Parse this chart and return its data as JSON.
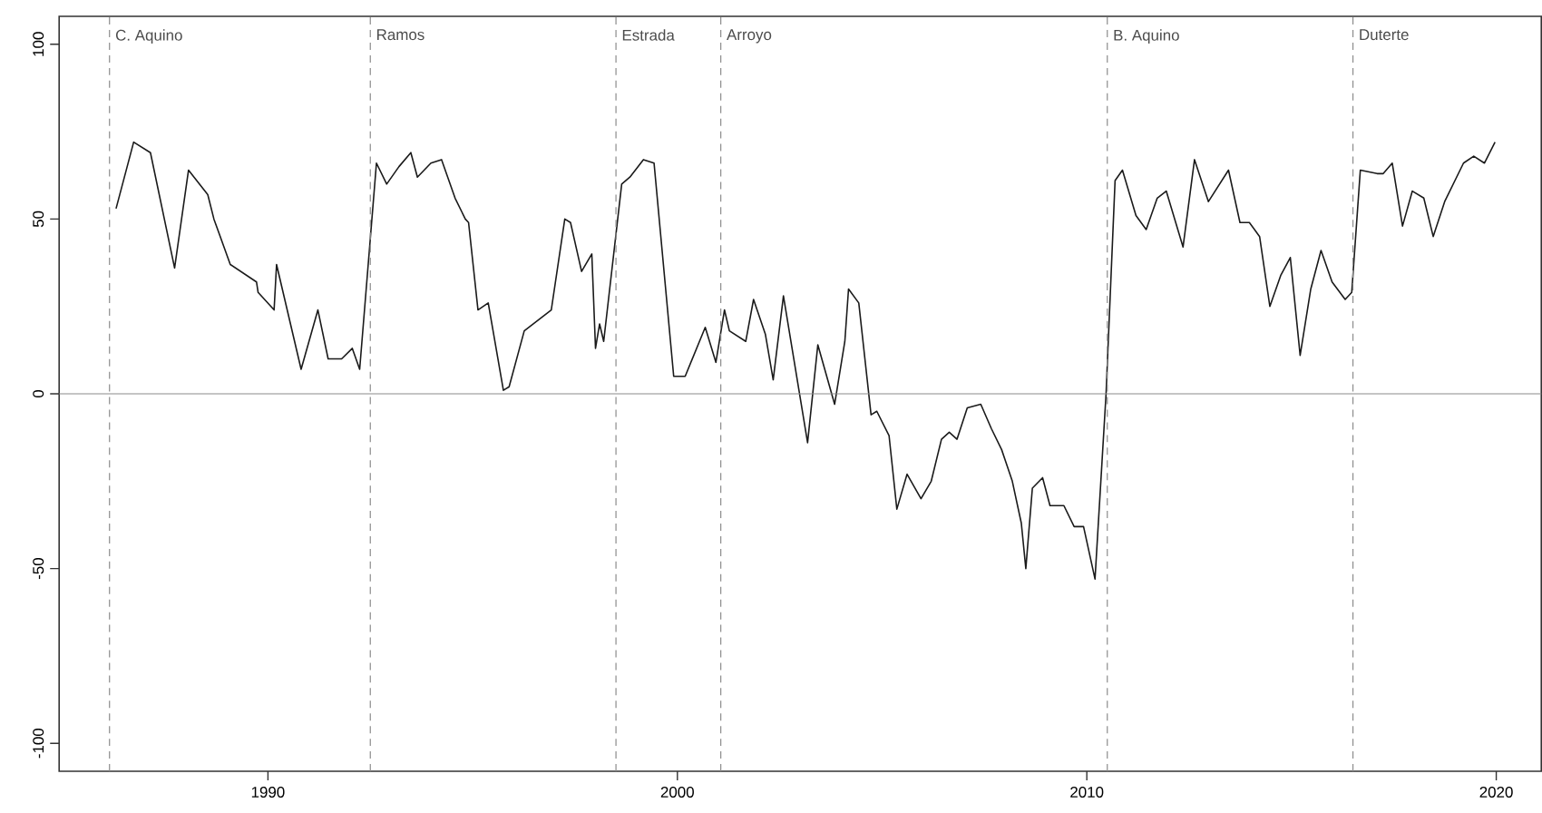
{
  "chart_data": {
    "type": "line",
    "xlim": [
      1984.9,
      2021.1
    ],
    "ylim": [
      -108,
      108
    ],
    "xticks": [
      1990,
      2000,
      2010,
      2020
    ],
    "yticks": [
      -100,
      -50,
      0,
      50,
      100
    ],
    "series": [
      {
        "color": "#1a1a1a",
        "line_style": "solid",
        "x": [
          1986.29,
          1986.72,
          1987.13,
          1987.72,
          1988.06,
          1988.53,
          1988.68,
          1989.08,
          1989.72,
          1989.76,
          1990.15,
          1990.21,
          1990.81,
          1991.22,
          1991.47,
          1991.8,
          1992.06,
          1992.24,
          1992.65,
          1992.9,
          1993.2,
          1993.49,
          1993.65,
          1993.98,
          1994.24,
          1994.57,
          1994.82,
          1994.9,
          1995.13,
          1995.38,
          1995.75,
          1995.89,
          1996.26,
          1996.92,
          1997.25,
          1997.39,
          1997.66,
          1997.91,
          1998.0,
          1998.1,
          1998.2,
          1998.64,
          1998.84,
          1999.17,
          1999.43,
          1999.91,
          2000.19,
          2000.68,
          2000.94,
          2001.15,
          2001.27,
          2001.67,
          2001.86,
          2002.15,
          2002.34,
          2002.59,
          2003.18,
          2003.43,
          2003.84,
          2004.09,
          2004.18,
          2004.43,
          2004.73,
          2004.87,
          2005.17,
          2005.36,
          2005.61,
          2005.95,
          2006.2,
          2006.45,
          2006.64,
          2006.83,
          2007.08,
          2007.41,
          2007.67,
          2007.92,
          2008.18,
          2008.4,
          2008.51,
          2008.67,
          2008.92,
          2009.1,
          2009.44,
          2009.69,
          2009.92,
          2010.2,
          2010.47,
          2010.69,
          2010.87,
          2011.2,
          2011.45,
          2011.72,
          2011.94,
          2012.35,
          2012.63,
          2012.97,
          2013.46,
          2013.74,
          2013.97,
          2014.22,
          2014.47,
          2014.74,
          2014.97,
          2015.21,
          2015.47,
          2015.72,
          2015.99,
          2016.31,
          2016.47,
          2016.68,
          2017.09,
          2017.24,
          2017.46,
          2017.71,
          2017.95,
          2018.23,
          2018.46,
          2018.74,
          2019.2,
          2019.45,
          2019.71,
          2019.97
        ],
        "values": [
          53,
          72,
          69,
          36,
          64,
          57,
          50,
          37,
          32,
          29,
          24,
          37,
          7,
          24,
          10,
          10,
          13,
          7,
          66,
          60,
          65,
          69,
          62,
          66,
          67,
          56,
          50,
          49,
          24,
          26,
          1,
          2,
          18,
          24,
          50,
          49,
          35,
          40,
          13,
          20,
          15,
          60,
          62,
          67,
          66,
          5,
          5,
          19,
          9,
          24,
          18,
          15,
          27,
          17,
          4,
          28,
          -14,
          14,
          -3,
          15,
          30,
          26,
          -6,
          -5,
          -12,
          -33,
          -23,
          -30,
          -25,
          -13,
          -11,
          -13,
          -4,
          -3,
          -10,
          -16,
          -25,
          -37,
          -50,
          -27,
          -24,
          -32,
          -32,
          -38,
          -38,
          -53,
          0,
          61,
          64,
          51,
          47,
          56,
          58,
          42,
          67,
          55,
          64,
          49,
          49,
          45,
          25,
          34,
          39,
          11,
          30,
          41,
          32,
          27,
          29,
          64,
          63,
          63,
          66,
          48,
          58,
          56,
          45,
          55,
          66,
          68,
          66,
          72
        ]
      }
    ],
    "ref_lines": [
      {
        "axis": "y",
        "value": 0,
        "color": "#8c8c8c",
        "line_style": "solid"
      },
      {
        "axis": "x",
        "value": 1986.13,
        "label": "C. Aquino",
        "color": "#8c8c8c",
        "line_style": "dashed"
      },
      {
        "axis": "x",
        "value": 1992.5,
        "label": "Ramos",
        "color": "#8c8c8c",
        "line_style": "dashed"
      },
      {
        "axis": "x",
        "value": 1998.5,
        "label": "Estrada",
        "color": "#8c8c8c",
        "line_style": "dashed"
      },
      {
        "axis": "x",
        "value": 2001.06,
        "label": "Arroyo",
        "color": "#8c8c8c",
        "line_style": "dashed"
      },
      {
        "axis": "x",
        "value": 2010.5,
        "label": "B. Aquino",
        "color": "#8c8c8c",
        "line_style": "dashed"
      },
      {
        "axis": "x",
        "value": 2016.5,
        "label": "Duterte",
        "color": "#8c8c8c",
        "line_style": "dashed"
      }
    ]
  }
}
